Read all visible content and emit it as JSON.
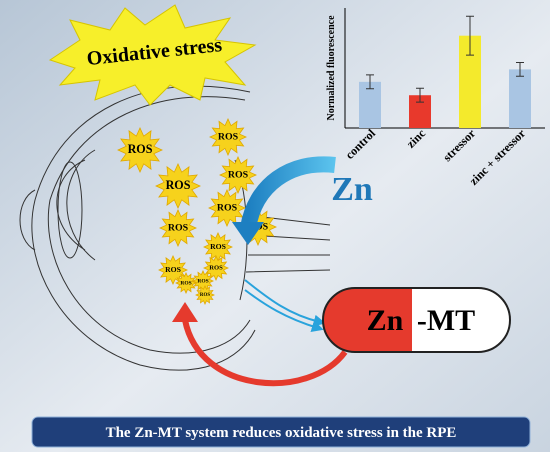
{
  "oxidative_stress_label": "Oxidative stress",
  "ros_labels": [
    "ROS",
    "ROS",
    "ROS",
    "ROS",
    "ROS",
    "ROS",
    "ROS",
    "ROS",
    "ROS",
    "ROS",
    "ROS",
    "ROS",
    "ROS"
  ],
  "zn_label": "Zn",
  "capsule": {
    "left": "Zn",
    "right": "-MT"
  },
  "banner": "The Zn-MT system reduces oxidative stress in the RPE",
  "chart_data": {
    "type": "bar",
    "ylabel": "Normalized fluorescence",
    "categories": [
      "control",
      "zinc",
      "stressor",
      "zinc + stressor"
    ],
    "values": [
      1.0,
      0.71,
      2.0,
      1.27
    ],
    "errors": [
      0.15,
      0.15,
      0.42,
      0.15
    ],
    "colors": [
      "#a9c5e3",
      "#e8392c",
      "#f4ea2c",
      "#a9c5e3"
    ],
    "ylim": [
      0,
      2.6
    ]
  }
}
